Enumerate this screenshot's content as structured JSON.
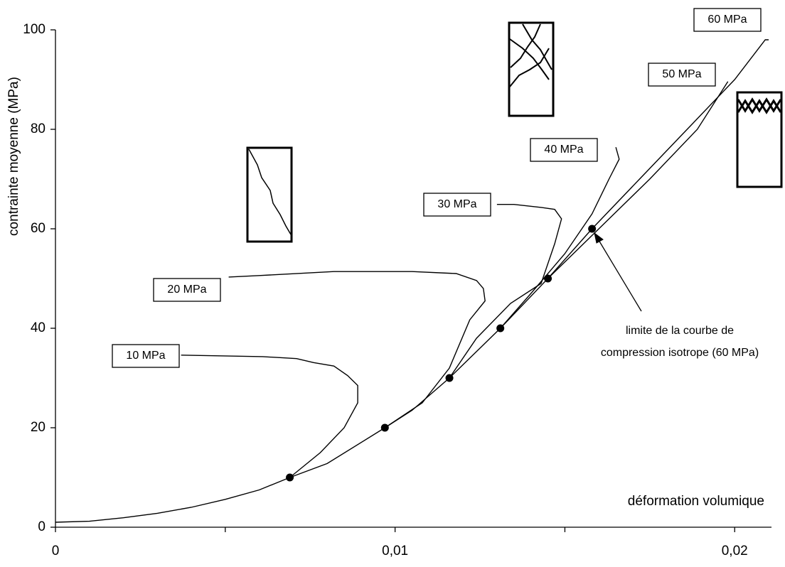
{
  "chart_data": {
    "type": "line",
    "y_label": "contrainte moyenne (MPa)",
    "x_label": "déformation volumique",
    "xlim": [
      0,
      0.021
    ],
    "ylim": [
      0,
      100
    ],
    "xticks": [
      0,
      {
        "value": 0.01,
        "label": "0,01"
      },
      {
        "value": 0.02,
        "label": "0,02"
      }
    ],
    "xminorticks": [
      0.005,
      0.015
    ],
    "yticks": [
      0,
      20,
      40,
      60,
      80,
      100
    ],
    "series": [
      {
        "color": "#000000",
        "x": [
          0,
          0.001,
          0.002,
          0.003,
          0.004,
          0.005,
          0.006,
          0.0069,
          0.008,
          0.0097,
          0.0105,
          0.0116,
          0.0131,
          0.0145,
          0.0158
        ],
        "values": [
          1,
          1.2,
          1.9,
          2.8,
          4.0,
          5.6,
          7.5,
          10,
          12.8,
          20,
          23.5,
          30,
          40,
          50,
          60
        ]
      },
      {
        "name": "10 MPa",
        "color": "#000000",
        "x": [
          0.0069,
          0.0078,
          0.0085,
          0.0089,
          0.0089,
          0.0086,
          0.0082,
          0.0076,
          0.0071,
          0.0061,
          0.0037
        ],
        "values": [
          10,
          15,
          20,
          25,
          28.5,
          30.5,
          32.4,
          33.1,
          33.9,
          34.3,
          34.6
        ]
      },
      {
        "name": "20 MPa",
        "color": "#000000",
        "x": [
          0.0097,
          0.0108,
          0.0116,
          0.0122,
          0.01265,
          0.0126,
          0.0124,
          0.0118,
          0.0105,
          0.0082,
          0.006,
          0.0051
        ],
        "values": [
          20,
          25,
          32,
          41.7,
          45.5,
          48,
          49.6,
          51,
          51.4,
          51.4,
          50.6,
          50.3
        ]
      },
      {
        "name": "30 MPa",
        "color": "#000000",
        "x": [
          0.0116,
          0.0124,
          0.0134,
          0.0143,
          0.0147,
          0.0149,
          0.0147,
          0.0143,
          0.0135,
          0.013
        ],
        "values": [
          30,
          38,
          45,
          49,
          57,
          62,
          63.9,
          64.3,
          64.9,
          64.9
        ]
      },
      {
        "name": "40 MPa",
        "color": "#000000",
        "x": [
          0.0131,
          0.014,
          0.015,
          0.0158,
          0.0163,
          0.0166,
          0.0165
        ],
        "values": [
          40,
          47,
          55,
          63,
          70,
          74,
          76.4
        ]
      },
      {
        "name": "50 MPa",
        "color": "#000000",
        "x": [
          0.0145,
          0.016,
          0.0175,
          0.0189,
          0.0198
        ],
        "values": [
          50,
          60,
          70,
          80,
          89.6
        ]
      },
      {
        "name": "60 MPa",
        "color": "#000000",
        "x": [
          0.0158,
          0.0172,
          0.0186,
          0.02,
          0.0209,
          0.021
        ],
        "values": [
          60,
          70,
          80,
          90,
          98,
          98
        ]
      }
    ],
    "points": {
      "x": [
        0.0069,
        0.0097,
        0.0116,
        0.0131,
        0.0145,
        0.0158
      ],
      "values": [
        10,
        20,
        30,
        40,
        50,
        60
      ]
    },
    "annotation": [
      "limite de la courbe de",
      "compression isotrope (60 MPa)"
    ]
  }
}
